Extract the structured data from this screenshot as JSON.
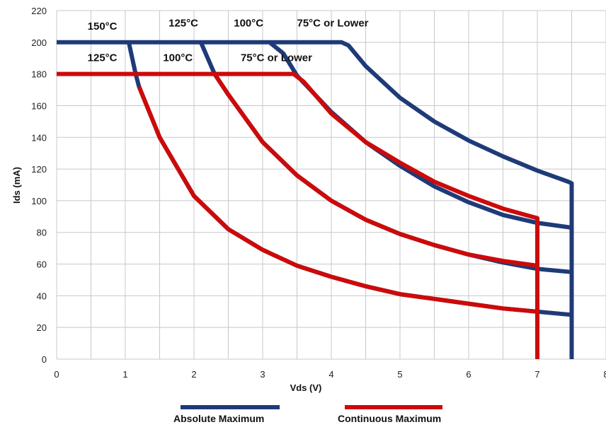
{
  "chart_data": {
    "type": "line",
    "xlabel": "Vds (V)",
    "ylabel": "Ids (mA)",
    "xlim": [
      0,
      8
    ],
    "ylim": [
      0,
      220
    ],
    "xticks": [
      0,
      1,
      2,
      3,
      4,
      5,
      6,
      7,
      8
    ],
    "yticks": [
      0,
      20,
      40,
      60,
      80,
      100,
      120,
      140,
      160,
      180,
      200,
      220
    ],
    "grid": true,
    "legend_position": "bottom",
    "legend": [
      {
        "label": "Absolute Maximum",
        "color": "#1f3a78"
      },
      {
        "label": "Continuous Maximum",
        "color": "#cc0a0a"
      }
    ],
    "series": [
      {
        "group": "Absolute Maximum",
        "color": "#1f3a78",
        "x": [
          0,
          4.15,
          4.25,
          4.5,
          5.0,
          5.5,
          6.0,
          6.5,
          7.0,
          7.45,
          7.5,
          7.5
        ],
        "y": [
          200,
          200,
          198,
          185,
          165,
          150,
          138,
          128,
          119,
          112,
          111,
          0
        ]
      },
      {
        "group": "Absolute Maximum",
        "color": "#1f3a78",
        "x": [
          3.1,
          3.3,
          3.5,
          4.0,
          4.5,
          5.0,
          5.5,
          6.0,
          6.5,
          7.0,
          7.5
        ],
        "y": [
          200,
          193,
          179,
          156,
          137,
          122,
          109,
          99,
          91,
          86,
          83
        ]
      },
      {
        "group": "Absolute Maximum",
        "color": "#1f3a78",
        "x": [
          2.1,
          2.3,
          2.5,
          3.0,
          3.5,
          4.0,
          4.5,
          5.0,
          5.5,
          6.0,
          6.5,
          7.0,
          7.5
        ],
        "y": [
          200,
          180,
          167,
          137,
          116,
          100,
          88,
          79,
          72,
          66,
          61,
          57,
          55
        ]
      },
      {
        "group": "Absolute Maximum",
        "color": "#1f3a78",
        "x": [
          1.05,
          1.15,
          1.2,
          1.5,
          2.0,
          2.5,
          3.0,
          3.5,
          4.0,
          4.5,
          5.0,
          5.5,
          6.0,
          6.5,
          7.0,
          7.5
        ],
        "y": [
          200,
          180,
          172,
          140,
          103,
          82,
          69,
          59,
          52,
          46,
          41,
          38,
          35,
          32,
          30,
          28
        ]
      },
      {
        "group": "Continuous Maximum",
        "color": "#cc0a0a",
        "x": [
          0,
          3.45,
          3.6,
          4.0,
          4.5,
          5.0,
          5.5,
          6.0,
          6.5,
          7.0,
          7.0
        ],
        "y": [
          180,
          180,
          175,
          155,
          137,
          124,
          112,
          103,
          95,
          89,
          0
        ]
      },
      {
        "group": "Continuous Maximum",
        "color": "#cc0a0a",
        "x": [
          2.3,
          2.5,
          3.0,
          3.5,
          4.0,
          4.5,
          5.0,
          5.5,
          6.0,
          6.5,
          7.0
        ],
        "y": [
          180,
          167,
          137,
          116,
          100,
          88,
          79,
          72,
          66,
          62,
          59
        ]
      },
      {
        "group": "Continuous Maximum",
        "color": "#cc0a0a",
        "x": [
          1.2,
          1.5,
          2.0,
          2.5,
          3.0,
          3.5,
          4.0,
          4.5,
          5.0,
          5.5,
          6.0,
          6.5,
          7.0
        ],
        "y": [
          172,
          140,
          103,
          82,
          69,
          59,
          52,
          46,
          41,
          38,
          35,
          32,
          30
        ]
      }
    ],
    "annotations": [
      {
        "text": "150°C",
        "x": 0.45,
        "y": 208
      },
      {
        "text": "125°C",
        "x": 1.63,
        "y": 210
      },
      {
        "text": "100°C",
        "x": 2.58,
        "y": 210
      },
      {
        "text": "75°C or Lower",
        "x": 3.5,
        "y": 210
      },
      {
        "text": "125°C",
        "x": 0.45,
        "y": 188
      },
      {
        "text": "100°C",
        "x": 1.55,
        "y": 188
      },
      {
        "text": "75°C or Lower",
        "x": 2.68,
        "y": 188
      }
    ]
  }
}
